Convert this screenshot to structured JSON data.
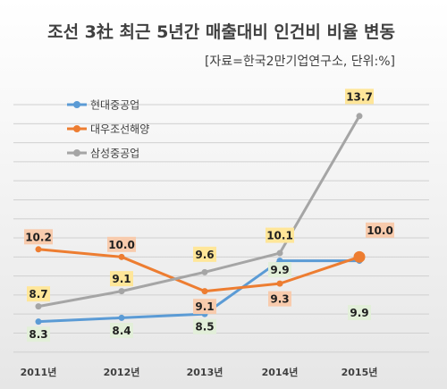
{
  "chart_data": {
    "type": "line",
    "title": "조선 3社 최근 5년간 매출대비 인건비 비율 변동",
    "subtitle": "[자료=한국2만기업연구소, 단위:%]",
    "categories": [
      "2011년",
      "2012년",
      "2013년",
      "2014년",
      "2015년"
    ],
    "series": [
      {
        "name": "현대중공업",
        "color": "#5b9bd5",
        "values": [
          8.3,
          8.4,
          8.5,
          9.9,
          9.9
        ],
        "labels": [
          "8.3",
          "8.4",
          "8.5",
          "9.9",
          "9.9"
        ],
        "label_fill": "#e2efd9"
      },
      {
        "name": "대우조선해양",
        "color": "#ed7d31",
        "values": [
          10.2,
          10.0,
          9.1,
          9.3,
          10.0
        ],
        "labels": [
          "10.2",
          "10.0",
          "9.1",
          "9.3",
          "10.0"
        ],
        "label_fill": "#f8cbad"
      },
      {
        "name": "삼성중공업",
        "color": "#a5a5a5",
        "values": [
          8.7,
          9.1,
          9.6,
          10.1,
          13.7
        ],
        "labels": [
          "8.7",
          "9.1",
          "9.6",
          "10.1",
          "13.7"
        ],
        "label_fill": "#ffe699"
      }
    ],
    "ylim": [
      7.4,
      14.4
    ],
    "grid": true,
    "legend_position": "top-left"
  }
}
